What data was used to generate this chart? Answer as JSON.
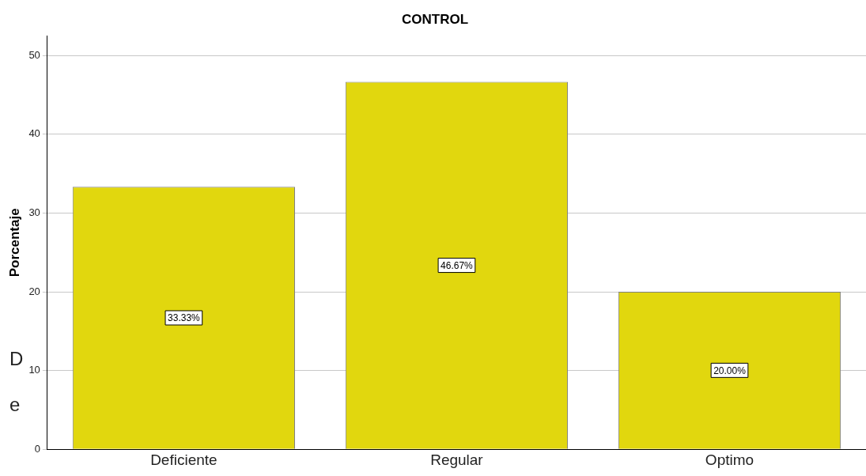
{
  "chart_data": {
    "type": "bar",
    "title": "CONTROL",
    "ylabel": "Porcentaje",
    "categories": [
      "Deficiente",
      "Regular",
      "Optimo"
    ],
    "values": [
      33.33,
      46.67,
      20.0
    ],
    "value_labels": [
      "33.33%",
      "46.67%",
      "20.00%"
    ],
    "color": "#e1d70e",
    "ylim": [
      0,
      52.5
    ],
    "yticks": [
      0,
      10,
      20,
      30,
      40,
      50
    ],
    "grid": "y",
    "annotations": [
      "D",
      "e"
    ]
  }
}
